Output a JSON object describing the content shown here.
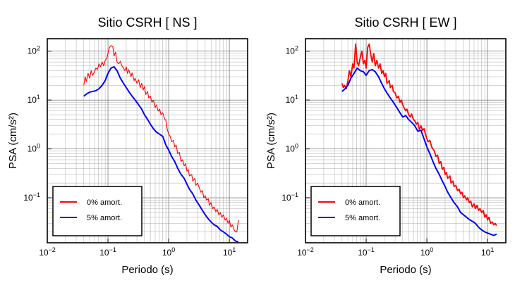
{
  "chart_data": [
    {
      "type": "line",
      "title": "Sitio CSRH [ NS ]",
      "xlabel": "Periodo (s)",
      "ylabel": "PSA (cm/s²)",
      "xscale": "log",
      "yscale": "log",
      "xlim": [
        0.01,
        20
      ],
      "ylim": [
        0.012,
        180
      ],
      "grid": true,
      "legend_position": "lower-left",
      "x_ticks": [
        {
          "value": 0.01,
          "base": "10",
          "exp": "−2"
        },
        {
          "value": 0.1,
          "base": "10",
          "exp": "−1"
        },
        {
          "value": 1,
          "base": "10",
          "exp": "0"
        },
        {
          "value": 10,
          "base": "10",
          "exp": "1"
        }
      ],
      "y_ticks": [
        {
          "value": 0.1,
          "base": "10",
          "exp": "−1"
        },
        {
          "value": 1,
          "base": "10",
          "exp": "0"
        },
        {
          "value": 10,
          "base": "10",
          "exp": "1"
        },
        {
          "value": 100,
          "base": "10",
          "exp": "2"
        }
      ],
      "series": [
        {
          "name": "0% amort.",
          "color": "#ff0000",
          "x": [
            0.04,
            0.042,
            0.044,
            0.047,
            0.05,
            0.053,
            0.056,
            0.06,
            0.063,
            0.067,
            0.071,
            0.075,
            0.08,
            0.085,
            0.09,
            0.095,
            0.1,
            0.106,
            0.112,
            0.12,
            0.126,
            0.133,
            0.141,
            0.15,
            0.16,
            0.17,
            0.18,
            0.19,
            0.2,
            0.21,
            0.22,
            0.24,
            0.25,
            0.27,
            0.28,
            0.3,
            0.32,
            0.34,
            0.36,
            0.38,
            0.4,
            0.42,
            0.45,
            0.47,
            0.5,
            0.53,
            0.56,
            0.6,
            0.63,
            0.67,
            0.71,
            0.75,
            0.8,
            0.85,
            0.9,
            0.95,
            1.0,
            1.06,
            1.12,
            1.2,
            1.26,
            1.33,
            1.41,
            1.5,
            1.6,
            1.7,
            1.8,
            1.9,
            2.0,
            2.1,
            2.2,
            2.4,
            2.5,
            2.7,
            2.8,
            3.0,
            3.2,
            3.4,
            3.6,
            3.8,
            4.0,
            4.2,
            4.5,
            4.7,
            5.0,
            5.3,
            5.6,
            6.0,
            6.3,
            6.7,
            7.1,
            7.5,
            8.0,
            8.5,
            9.0,
            9.5,
            10,
            10.6,
            11.2,
            12,
            12.6,
            13.3,
            14.1
          ],
          "y": [
            20,
            30,
            24,
            35,
            28,
            40,
            32,
            38,
            45,
            42,
            55,
            48,
            60,
            50,
            65,
            70,
            90,
            120,
            130,
            125,
            80,
            95,
            60,
            55,
            62,
            50,
            45,
            40,
            48,
            35,
            42,
            30,
            36,
            25,
            28,
            22,
            26,
            18,
            22,
            16,
            19,
            13,
            15,
            11,
            12,
            9,
            10,
            7,
            8,
            6,
            6.5,
            5,
            5.5,
            4.2,
            3.8,
            2.5,
            2.0,
            1.8,
            1.4,
            1.5,
            1.1,
            1.2,
            0.8,
            0.85,
            0.55,
            0.6,
            0.45,
            0.5,
            0.35,
            0.38,
            0.28,
            0.3,
            0.22,
            0.25,
            0.18,
            0.2,
            0.16,
            0.13,
            0.14,
            0.1,
            0.11,
            0.09,
            0.095,
            0.07,
            0.08,
            0.06,
            0.065,
            0.052,
            0.058,
            0.045,
            0.05,
            0.04,
            0.045,
            0.035,
            0.038,
            0.03,
            0.035,
            0.025,
            0.028,
            0.022,
            0.02,
            0.02,
            0.035
          ]
        },
        {
          "name": "5% amort.",
          "color": "#0000ff",
          "x": [
            0.04,
            0.045,
            0.05,
            0.056,
            0.063,
            0.071,
            0.08,
            0.09,
            0.1,
            0.112,
            0.126,
            0.141,
            0.16,
            0.18,
            0.2,
            0.22,
            0.25,
            0.28,
            0.32,
            0.36,
            0.4,
            0.45,
            0.5,
            0.56,
            0.63,
            0.71,
            0.8,
            0.9,
            1.0,
            1.12,
            1.26,
            1.41,
            1.6,
            1.8,
            2.0,
            2.2,
            2.5,
            2.8,
            3.2,
            3.6,
            4.0,
            4.5,
            5.0,
            5.6,
            6.3,
            7.1,
            8.0,
            9.0,
            10,
            11.2,
            12.6,
            14.1
          ],
          "y": [
            12,
            13.5,
            14.5,
            15,
            15.5,
            17,
            20,
            25,
            35,
            45,
            48,
            40,
            28,
            22,
            18,
            15,
            12,
            10,
            8,
            6.5,
            5,
            4,
            3.2,
            2.6,
            2.2,
            2.0,
            1.8,
            1.2,
            0.95,
            0.7,
            0.55,
            0.4,
            0.3,
            0.25,
            0.19,
            0.15,
            0.12,
            0.09,
            0.07,
            0.055,
            0.045,
            0.037,
            0.032,
            0.028,
            0.026,
            0.022,
            0.02,
            0.018,
            0.016,
            0.015,
            0.013,
            0.0125
          ]
        }
      ]
    },
    {
      "type": "line",
      "title": "Sitio CSRH [ EW ]",
      "xlabel": "Periodo (s)",
      "ylabel": "PSA (cm/s²)",
      "xscale": "log",
      "yscale": "log",
      "xlim": [
        0.01,
        20
      ],
      "ylim": [
        0.012,
        180
      ],
      "grid": true,
      "legend_position": "lower-left",
      "x_ticks": [
        {
          "value": 0.01,
          "base": "10",
          "exp": "−2"
        },
        {
          "value": 0.1,
          "base": "10",
          "exp": "−1"
        },
        {
          "value": 1,
          "base": "10",
          "exp": "0"
        },
        {
          "value": 10,
          "base": "10",
          "exp": "1"
        }
      ],
      "y_ticks": [
        {
          "value": 0.1,
          "base": "10",
          "exp": "−1"
        },
        {
          "value": 1,
          "base": "10",
          "exp": "0"
        },
        {
          "value": 10,
          "base": "10",
          "exp": "1"
        },
        {
          "value": 100,
          "base": "10",
          "exp": "2"
        }
      ],
      "series": [
        {
          "name": "0% amort.",
          "color": "#ff0000",
          "x": [
            0.04,
            0.042,
            0.044,
            0.047,
            0.05,
            0.053,
            0.056,
            0.06,
            0.063,
            0.067,
            0.071,
            0.075,
            0.08,
            0.085,
            0.09,
            0.095,
            0.1,
            0.106,
            0.112,
            0.12,
            0.126,
            0.133,
            0.141,
            0.15,
            0.16,
            0.17,
            0.18,
            0.19,
            0.2,
            0.21,
            0.22,
            0.24,
            0.25,
            0.27,
            0.28,
            0.3,
            0.32,
            0.34,
            0.36,
            0.38,
            0.4,
            0.42,
            0.45,
            0.47,
            0.5,
            0.53,
            0.56,
            0.6,
            0.63,
            0.67,
            0.71,
            0.75,
            0.8,
            0.85,
            0.9,
            0.95,
            1.0,
            1.06,
            1.12,
            1.2,
            1.26,
            1.33,
            1.41,
            1.5,
            1.6,
            1.7,
            1.8,
            1.9,
            2.0,
            2.1,
            2.2,
            2.4,
            2.5,
            2.7,
            2.8,
            3.0,
            3.2,
            3.4,
            3.6,
            3.8,
            4.0,
            4.2,
            4.5,
            4.7,
            5.0,
            5.3,
            5.6,
            6.0,
            6.3,
            6.7,
            7.1,
            7.5,
            8.0,
            8.5,
            9.0,
            9.5,
            10,
            10.6,
            11.2,
            12,
            12.6,
            13.3,
            14.1
          ],
          "y": [
            22,
            18,
            20,
            17,
            25,
            40,
            30,
            55,
            45,
            140,
            60,
            50,
            75,
            100,
            55,
            65,
            45,
            120,
            140,
            80,
            60,
            90,
            50,
            65,
            45,
            55,
            35,
            40,
            30,
            35,
            22,
            25,
            18,
            20,
            15,
            14,
            11,
            12,
            9,
            10,
            8,
            7,
            6,
            6.5,
            5,
            4.5,
            5.2,
            4,
            3.8,
            3.2,
            3.5,
            2.5,
            3.0,
            2.4,
            2.6,
            2.0,
            1.6,
            1.4,
            1.5,
            1.1,
            1.0,
            0.9,
            0.7,
            0.75,
            0.5,
            0.55,
            0.38,
            0.42,
            0.3,
            0.33,
            0.25,
            0.28,
            0.2,
            0.22,
            0.17,
            0.18,
            0.14,
            0.15,
            0.12,
            0.13,
            0.1,
            0.11,
            0.09,
            0.1,
            0.08,
            0.085,
            0.065,
            0.075,
            0.06,
            0.07,
            0.055,
            0.06,
            0.05,
            0.055,
            0.04,
            0.045,
            0.035,
            0.04,
            0.03,
            0.032,
            0.028,
            0.03,
            0.027
          ]
        },
        {
          "name": "5% amort.",
          "color": "#0000ff",
          "x": [
            0.04,
            0.045,
            0.05,
            0.056,
            0.063,
            0.071,
            0.08,
            0.09,
            0.1,
            0.112,
            0.126,
            0.141,
            0.16,
            0.18,
            0.2,
            0.22,
            0.25,
            0.28,
            0.32,
            0.36,
            0.4,
            0.45,
            0.5,
            0.56,
            0.63,
            0.71,
            0.8,
            0.9,
            1.0,
            1.12,
            1.26,
            1.41,
            1.6,
            1.8,
            2.0,
            2.2,
            2.5,
            2.8,
            3.2,
            3.6,
            4.0,
            4.5,
            5.0,
            5.6,
            6.3,
            7.1,
            8.0,
            9.0,
            10,
            11.2,
            12.6,
            14.1
          ],
          "y": [
            15,
            17,
            20,
            28,
            35,
            45,
            40,
            38,
            32,
            40,
            42,
            38,
            30,
            22,
            17,
            14,
            11,
            9,
            7,
            5.5,
            4.5,
            4.8,
            4.0,
            3.5,
            3.0,
            2.3,
            2.4,
            1.6,
            1.1,
            0.8,
            0.55,
            0.4,
            0.3,
            0.22,
            0.17,
            0.13,
            0.1,
            0.08,
            0.065,
            0.05,
            0.045,
            0.04,
            0.036,
            0.033,
            0.03,
            0.025,
            0.022,
            0.02,
            0.019,
            0.018,
            0.017,
            0.018
          ]
        }
      ]
    }
  ]
}
